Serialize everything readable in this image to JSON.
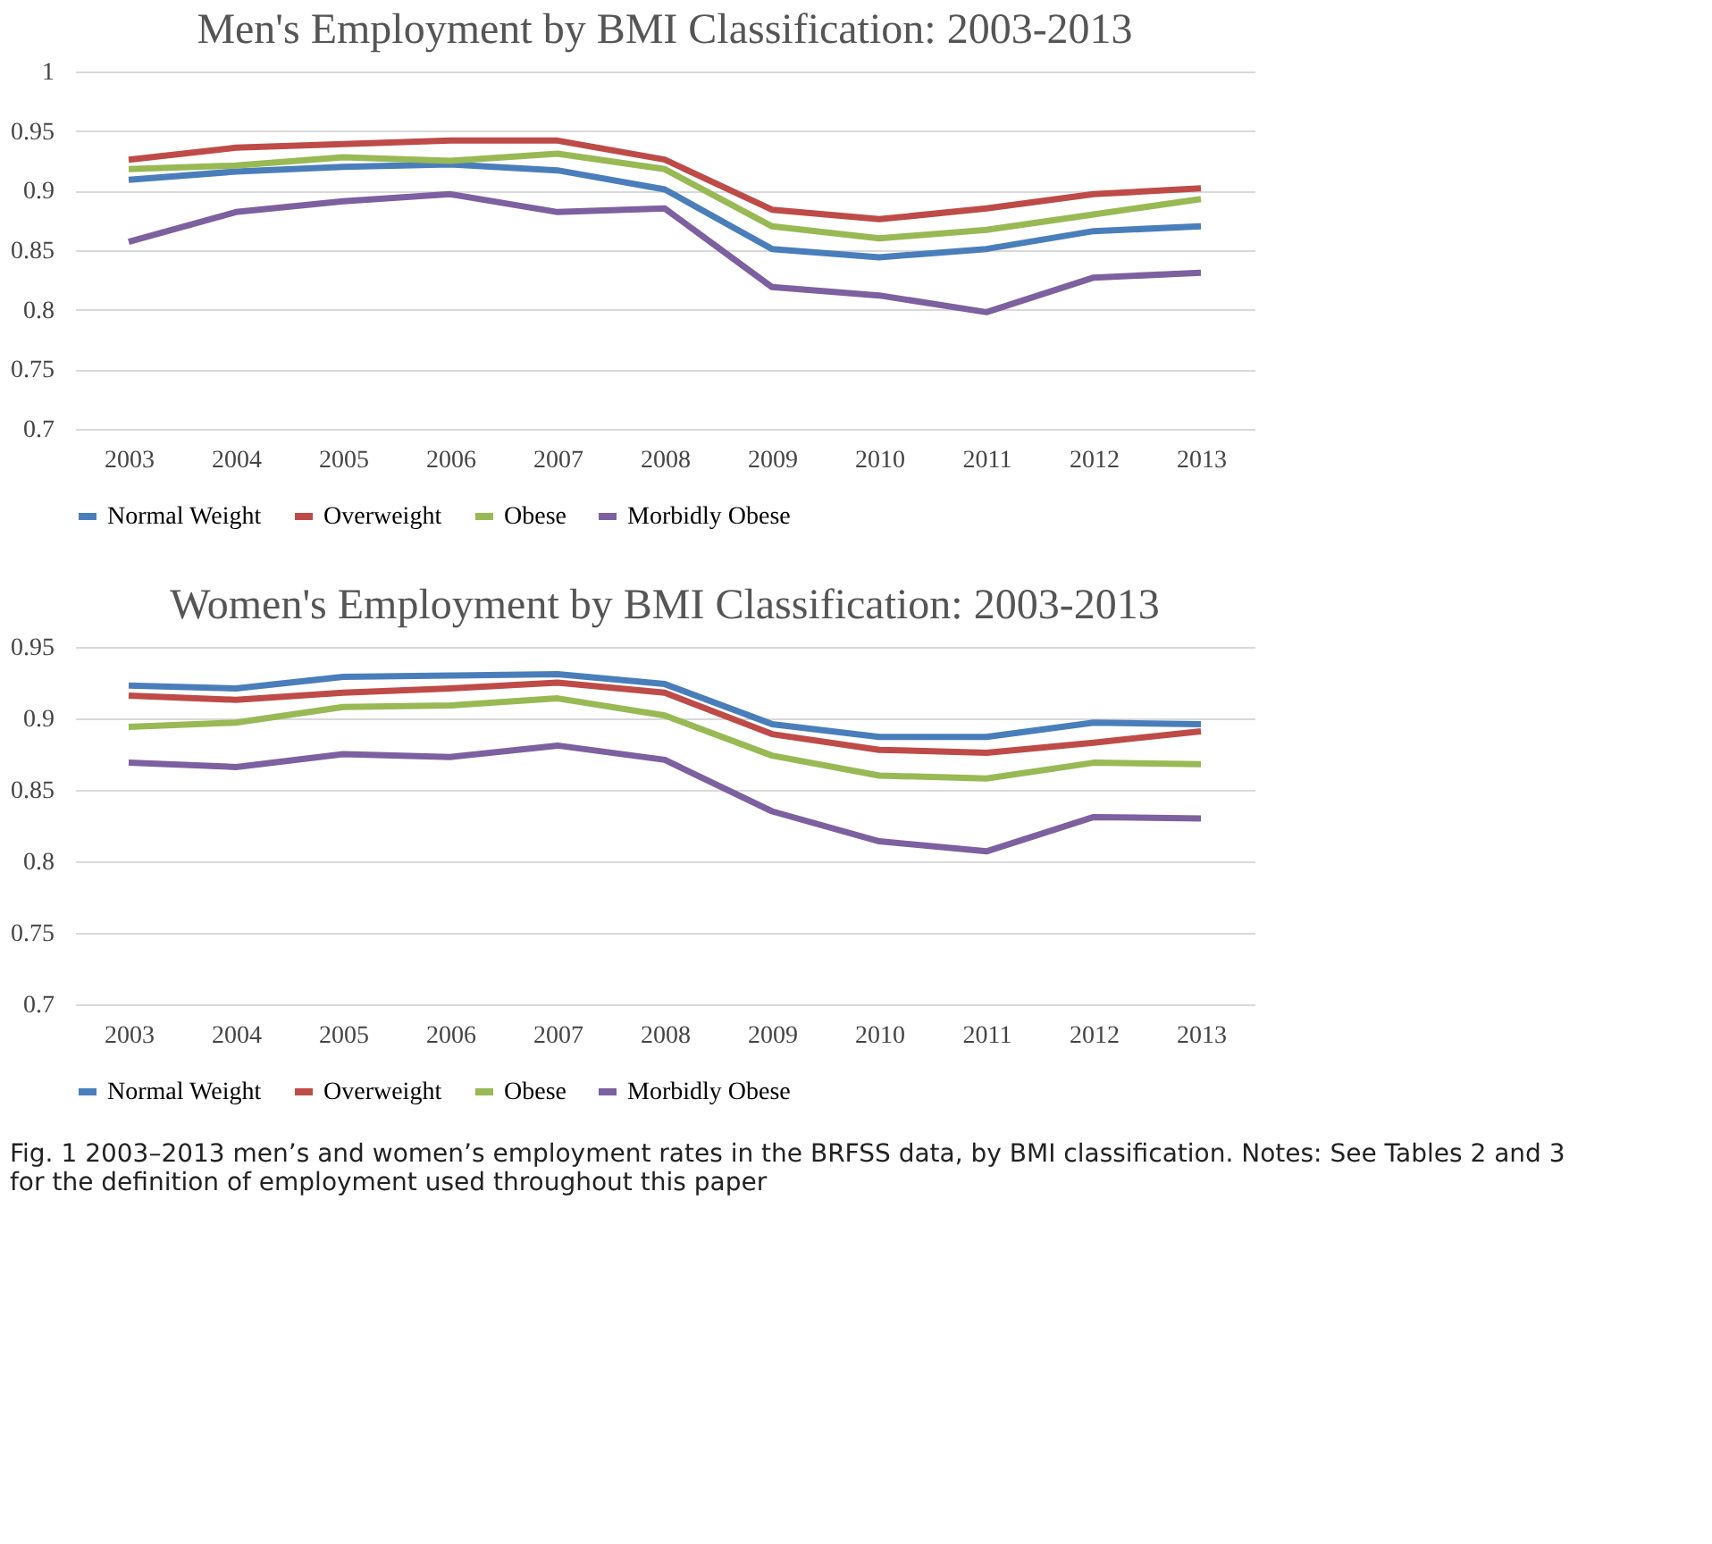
{
  "chart_data": [
    {
      "type": "line",
      "title": "Men's Employment by BMI Classification: 2003-2013",
      "categories": [
        "2003",
        "2004",
        "2005",
        "2006",
        "2007",
        "2008",
        "2009",
        "2010",
        "2011",
        "2012",
        "2013"
      ],
      "ylim": [
        0.7,
        1
      ],
      "yticks": [
        0.7,
        0.75,
        0.8,
        0.85,
        0.9,
        0.95,
        1
      ],
      "grid": "y",
      "legend": "bottom",
      "marker": "none",
      "line_style": "solid",
      "series": [
        {
          "name": "Normal Weight",
          "color": "#4a7ebb",
          "values": [
            0.909,
            0.916,
            0.92,
            0.922,
            0.917,
            0.901,
            0.851,
            0.844,
            0.851,
            0.866,
            0.87
          ]
        },
        {
          "name": "Overweight",
          "color": "#be4b48",
          "values": [
            0.926,
            0.936,
            0.939,
            0.942,
            0.942,
            0.926,
            0.884,
            0.876,
            0.885,
            0.897,
            0.902
          ]
        },
        {
          "name": "Obese",
          "color": "#98b954",
          "values": [
            0.918,
            0.921,
            0.928,
            0.925,
            0.931,
            0.918,
            0.87,
            0.86,
            0.867,
            0.88,
            0.893
          ]
        },
        {
          "name": "Morbidly Obese",
          "color": "#7d60a0",
          "values": [
            0.857,
            0.882,
            0.891,
            0.897,
            0.882,
            0.885,
            0.819,
            0.812,
            0.798,
            0.827,
            0.831
          ]
        }
      ]
    },
    {
      "type": "line",
      "title": "Women's Employment by BMI Classification: 2003-2013",
      "categories": [
        "2003",
        "2004",
        "2005",
        "2006",
        "2007",
        "2008",
        "2009",
        "2010",
        "2011",
        "2012",
        "2013"
      ],
      "ylim": [
        0.7,
        0.95
      ],
      "yticks": [
        0.7,
        0.75,
        0.8,
        0.85,
        0.9,
        0.95
      ],
      "grid": "y",
      "legend": "bottom",
      "marker": "none",
      "line_style": "solid",
      "annotations": [
        "Fig. 1 2003–2013 men’s and women’s employment rates in the BRFSS data, by BMI classification. Notes: See Tables 2 and 3 for the definition of employment used throughout this paper"
      ],
      "series": [
        {
          "name": "Normal Weight",
          "color": "#4a7ebb",
          "values": [
            0.923,
            0.921,
            0.929,
            0.93,
            0.931,
            0.924,
            0.896,
            0.887,
            0.887,
            0.897,
            0.896
          ]
        },
        {
          "name": "Overweight",
          "color": "#be4b48",
          "values": [
            0.916,
            0.913,
            0.918,
            0.921,
            0.925,
            0.918,
            0.889,
            0.878,
            0.876,
            0.883,
            0.891
          ]
        },
        {
          "name": "Obese",
          "color": "#98b954",
          "values": [
            0.894,
            0.897,
            0.908,
            0.909,
            0.914,
            0.902,
            0.874,
            0.86,
            0.858,
            0.869,
            0.868
          ]
        },
        {
          "name": "Morbidly Obese",
          "color": "#7d60a0",
          "values": [
            0.869,
            0.866,
            0.875,
            0.873,
            0.881,
            0.871,
            0.835,
            0.814,
            0.807,
            0.831,
            0.83
          ]
        }
      ]
    }
  ]
}
